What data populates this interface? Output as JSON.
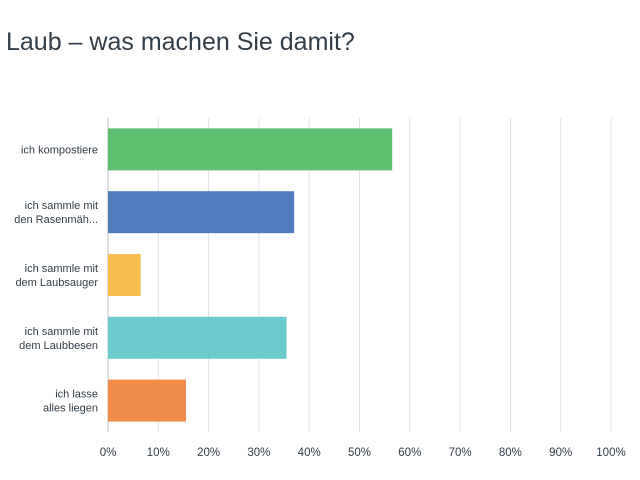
{
  "chart_data": {
    "type": "bar",
    "orientation": "horizontal",
    "title": "Laub – was machen Sie damit?",
    "xlabel": "",
    "ylabel": "",
    "xlim": [
      0,
      100
    ],
    "x_unit": "%",
    "grid": true,
    "categories": [
      [
        "ich kompostiere"
      ],
      [
        "ich sammle mit",
        "den Rasenmäh..."
      ],
      [
        "ich sammle mit",
        "dem Laubsauger"
      ],
      [
        "ich sammle mit",
        "dem Laubbesen"
      ],
      [
        "ich lasse",
        "alles liegen"
      ]
    ],
    "values": [
      56.5,
      37,
      6.5,
      35.5,
      15.5
    ],
    "colors": [
      "#5bbf6f",
      "#4f7dbd",
      "#f7be4f",
      "#6ccbce",
      "#f08c4a"
    ],
    "ticks": [
      "0%",
      "10%",
      "20%",
      "30%",
      "40%",
      "50%",
      "60%",
      "70%",
      "80%",
      "90%",
      "100%"
    ]
  }
}
